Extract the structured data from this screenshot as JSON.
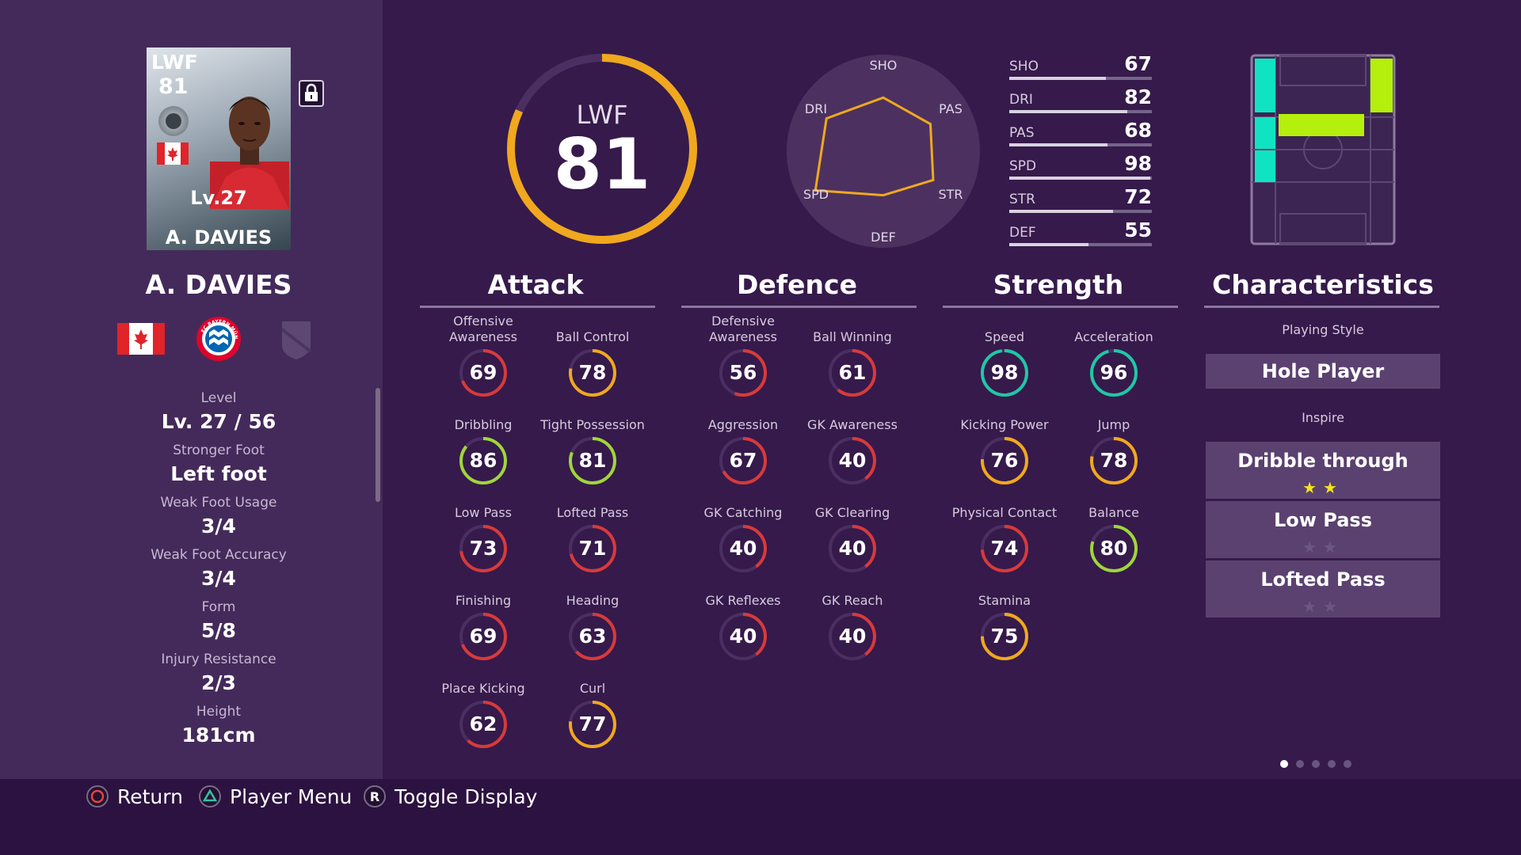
{
  "card": {
    "position": "LWF",
    "overall": "81",
    "level": "Lv.27",
    "name": "A. DAVIES"
  },
  "player": {
    "name": "A. DAVIES",
    "nationality_flag": "canada-flag",
    "club_badge": "fc-bayern-munchen-badge",
    "club_badge_text": "FC BAYERN MÜNCHEN"
  },
  "info": [
    {
      "label": "Level",
      "value": "Lv. 27 / 56"
    },
    {
      "label": "Stronger Foot",
      "value": "Left foot"
    },
    {
      "label": "Weak Foot Usage",
      "value": "3/4"
    },
    {
      "label": "Weak Foot Accuracy",
      "value": "3/4"
    },
    {
      "label": "Form",
      "value": "5/8"
    },
    {
      "label": "Injury Resistance",
      "value": "2/3"
    },
    {
      "label": "Height",
      "value": "181cm"
    }
  ],
  "overall": {
    "position": "LWF",
    "rating": "81",
    "max": 99
  },
  "radar": {
    "axes": [
      "SHO",
      "PAS",
      "STR",
      "DEF",
      "SPD",
      "DRI"
    ],
    "values": [
      67,
      68,
      72,
      55,
      98,
      82
    ],
    "max": 99
  },
  "stat_bars": [
    {
      "label": "SHO",
      "value": "67"
    },
    {
      "label": "DRI",
      "value": "82"
    },
    {
      "label": "PAS",
      "value": "68"
    },
    {
      "label": "SPD",
      "value": "98"
    },
    {
      "label": "STR",
      "value": "72"
    },
    {
      "label": "DEF",
      "value": "55"
    }
  ],
  "sections": {
    "attack": {
      "title": "Attack",
      "stats": [
        {
          "label": "Offensive Awareness",
          "value": "69"
        },
        {
          "label": "Ball Control",
          "value": "78"
        },
        {
          "label": "Dribbling",
          "value": "86"
        },
        {
          "label": "Tight Possession",
          "value": "81"
        },
        {
          "label": "Low Pass",
          "value": "73"
        },
        {
          "label": "Lofted Pass",
          "value": "71"
        },
        {
          "label": "Finishing",
          "value": "69"
        },
        {
          "label": "Heading",
          "value": "63"
        },
        {
          "label": "Place Kicking",
          "value": "62"
        },
        {
          "label": "Curl",
          "value": "77"
        }
      ]
    },
    "defence": {
      "title": "Defence",
      "stats": [
        {
          "label": "Defensive Awareness",
          "value": "56"
        },
        {
          "label": "Ball Winning",
          "value": "61"
        },
        {
          "label": "Aggression",
          "value": "67"
        },
        {
          "label": "GK Awareness",
          "value": "40"
        },
        {
          "label": "GK Catching",
          "value": "40"
        },
        {
          "label": "GK Clearing",
          "value": "40"
        },
        {
          "label": "GK Reflexes",
          "value": "40"
        },
        {
          "label": "GK Reach",
          "value": "40"
        }
      ]
    },
    "strength": {
      "title": "Strength",
      "stats": [
        {
          "label": "Speed",
          "value": "98"
        },
        {
          "label": "Acceleration",
          "value": "96"
        },
        {
          "label": "Kicking Power",
          "value": "76"
        },
        {
          "label": "Jump",
          "value": "78"
        },
        {
          "label": "Physical Contact",
          "value": "74"
        },
        {
          "label": "Balance",
          "value": "80"
        },
        {
          "label": "Stamina",
          "value": "75"
        }
      ]
    },
    "characteristics": {
      "title": "Characteristics",
      "playing_style_label": "Playing Style",
      "playing_style": "Hole Player",
      "inspire_label": "Inspire",
      "inspire": [
        {
          "name": "Dribble through",
          "stars": 2
        },
        {
          "name": "Low Pass",
          "stars": 0
        },
        {
          "name": "Lofted Pass",
          "stars": 0
        }
      ]
    }
  },
  "pitch_positions": {
    "primary": [
      "LWF",
      "LMF"
    ],
    "proficient": [
      "RWF",
      "AMF"
    ],
    "colors": {
      "primary": "#10e3c2",
      "proficient": "#b4f00c"
    }
  },
  "pagination": {
    "pages": 5,
    "current": 1
  },
  "controls": [
    {
      "icon": "circle-button-icon",
      "label": "Return"
    },
    {
      "icon": "triangle-button-icon",
      "label": "Player Menu"
    },
    {
      "icon": "r-button-icon",
      "label": "Toggle Display"
    }
  ],
  "colors": {
    "background": "#361a4b",
    "panel": "#442a5a",
    "ring_track": "#4b2f63",
    "rating_red": "#d83a3a",
    "rating_orange": "#f0a81e",
    "rating_green": "#9fd63a",
    "rating_teal": "#1ec8a6",
    "star": "#f4e31d"
  }
}
